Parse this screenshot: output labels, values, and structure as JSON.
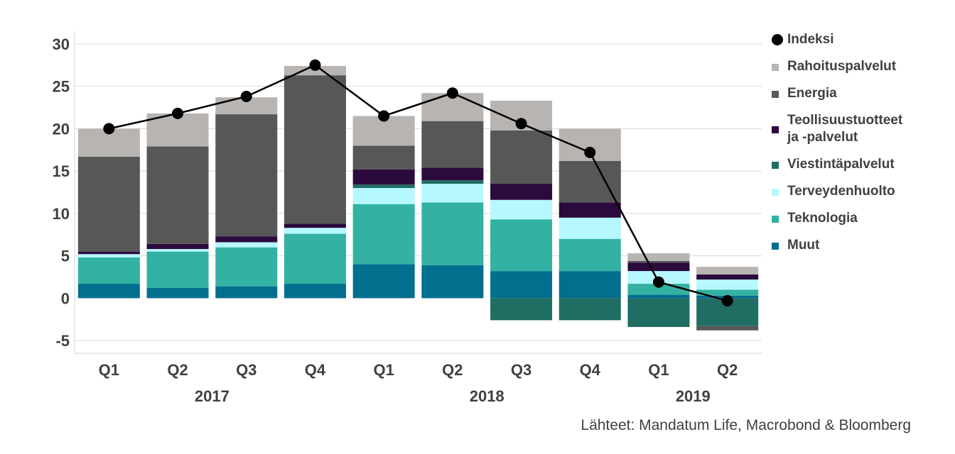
{
  "chart_data": {
    "type": "stacked-bar-with-line",
    "quarters": [
      "Q1",
      "Q2",
      "Q3",
      "Q4",
      "Q1",
      "Q2",
      "Q3",
      "Q4",
      "Q1",
      "Q2"
    ],
    "years": [
      {
        "label": "2017",
        "span": [
          0,
          3
        ]
      },
      {
        "label": "2018",
        "span": [
          4,
          7
        ]
      },
      {
        "label": "2019",
        "span": [
          8,
          9
        ]
      }
    ],
    "ylim": [
      -6.5,
      31.5
    ],
    "yticks": [
      -5,
      0,
      5,
      10,
      15,
      20,
      25,
      30
    ],
    "ytick_labels": [
      "-5",
      "0",
      "5",
      "10",
      "15",
      "20",
      "25",
      "30"
    ],
    "series": [
      {
        "name": "Muut",
        "color": "#036f8f",
        "values": [
          1.7,
          1.2,
          1.4,
          1.7,
          4.0,
          3.9,
          3.2,
          3.2,
          0.4,
          0.3
        ]
      },
      {
        "name": "Teknologia",
        "color": "#33b1a2",
        "values": [
          3.1,
          4.3,
          4.6,
          5.9,
          7.1,
          7.4,
          6.1,
          3.8,
          1.3,
          0.7
        ]
      },
      {
        "name": "Terveydenhuolto",
        "color": "#b5f8ff",
        "values": [
          0.4,
          0.3,
          0.6,
          0.7,
          1.9,
          2.2,
          2.3,
          2.5,
          1.5,
          1.2
        ]
      },
      {
        "name": "Viestintäpalvelut",
        "color": "#1f6d63",
        "values": [
          0,
          0,
          0,
          0,
          0.4,
          0.4,
          -2.6,
          -2.6,
          -3.4,
          -3.3
        ]
      },
      {
        "name": "Teollisuustuotteet ja -palvelut",
        "color": "#2b0a3d",
        "values": [
          0.3,
          0.6,
          0.7,
          0.5,
          1.8,
          1.5,
          1.9,
          1.8,
          1.0,
          0.6
        ]
      },
      {
        "name": "Energia",
        "color": "#575757",
        "values": [
          11.2,
          11.5,
          14.4,
          17.5,
          2.8,
          5.5,
          6.3,
          4.9,
          0.2,
          -0.5
        ]
      },
      {
        "name": "Rahoituspalvelut",
        "color": "#b8b4b1",
        "values": [
          3.3,
          3.9,
          2.0,
          1.1,
          3.5,
          3.3,
          3.5,
          3.8,
          0.9,
          0.9
        ]
      }
    ],
    "line": {
      "name": "Indeksi",
      "color": "#000000",
      "values": [
        20.0,
        21.8,
        23.8,
        27.5,
        21.5,
        24.2,
        20.6,
        17.2,
        1.9,
        -0.3
      ]
    },
    "legend_position": "right"
  },
  "legend": {
    "indeksi": "Indeksi",
    "rahoitus": "Rahoituspalvelut",
    "energia": "Energia",
    "teollisuus_1": "Teollisuustuotteet",
    "teollisuus_2": "ja -palvelut",
    "viestinta": "Viestintäpalvelut",
    "terveys": "Terveydenhuolto",
    "teknologia": "Teknologia",
    "muut": "Muut"
  },
  "source": "Lähteet: Mandatum Life, Macrobond & Bloomberg"
}
